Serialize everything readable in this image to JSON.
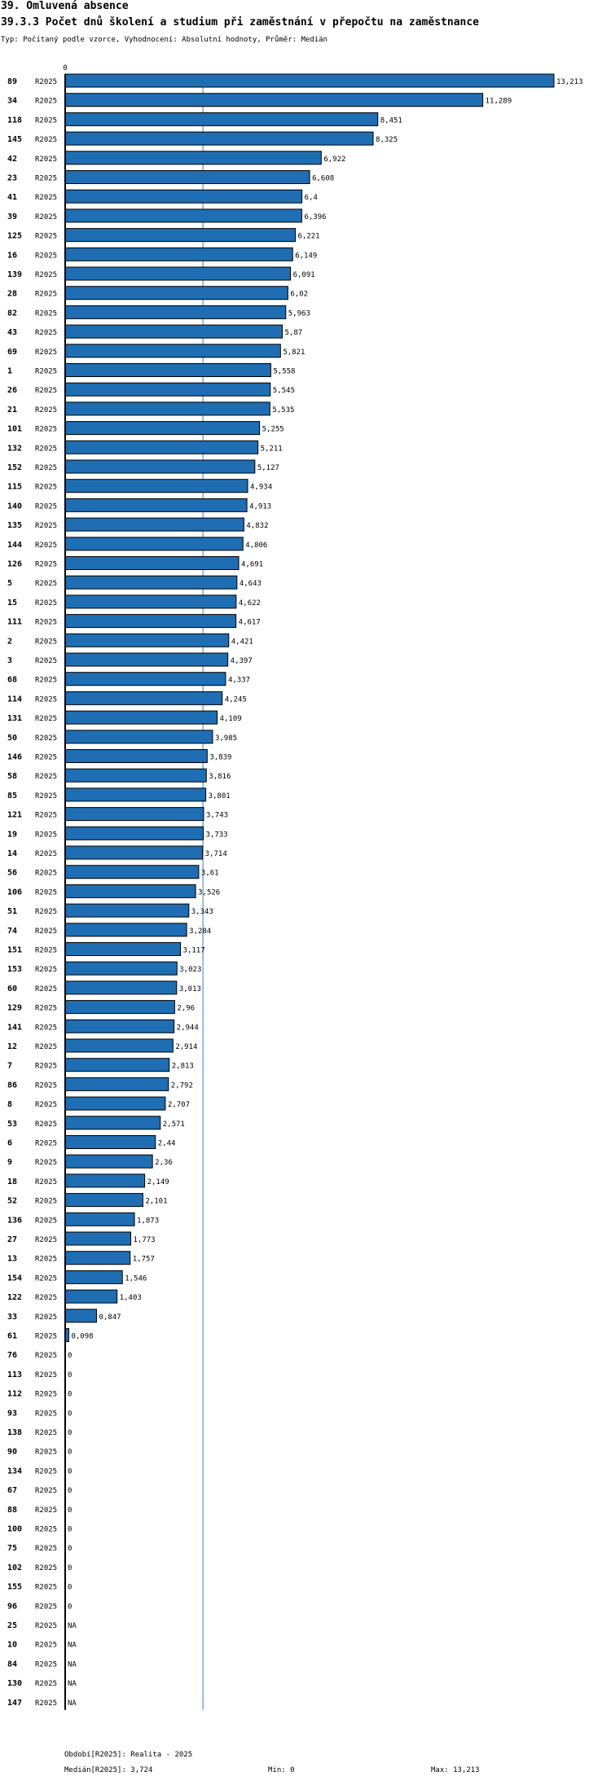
{
  "header": {
    "title": "39. Omluvená absence",
    "subtitle": "39.3.3 Počet dnů školení a studium při zaměstnání v přepočtu na zaměstnance",
    "type_line": "Typ: Počítaný podle vzorce, Vyhodnocení: Absolutní hodnoty, Průměr: Medián"
  },
  "footer": {
    "period": "Období[R2025]: Realita - 2025",
    "median": "Medián[R2025]: 3,724",
    "min": "Min: 0",
    "max": "Max: 13,213"
  },
  "colors": {
    "bar": "#1f6eb3",
    "bar_border": "#000000",
    "median_line": "#3a7fb8"
  },
  "chart_data": {
    "type": "bar",
    "orientation": "horizontal",
    "series_label": "R2025",
    "axis_zero_label": "0",
    "xlim": [
      0,
      13.213
    ],
    "median": 3.724,
    "rows": [
      {
        "id": "89",
        "value": 13.213,
        "label": "13,213"
      },
      {
        "id": "34",
        "value": 11.289,
        "label": "11,289"
      },
      {
        "id": "118",
        "value": 8.451,
        "label": "8,451"
      },
      {
        "id": "145",
        "value": 8.325,
        "label": "8,325"
      },
      {
        "id": "42",
        "value": 6.922,
        "label": "6,922"
      },
      {
        "id": "23",
        "value": 6.608,
        "label": "6,608"
      },
      {
        "id": "41",
        "value": 6.4,
        "label": "6,4"
      },
      {
        "id": "39",
        "value": 6.396,
        "label": "6,396"
      },
      {
        "id": "125",
        "value": 6.221,
        "label": "6,221"
      },
      {
        "id": "16",
        "value": 6.149,
        "label": "6,149"
      },
      {
        "id": "139",
        "value": 6.091,
        "label": "6,091"
      },
      {
        "id": "28",
        "value": 6.02,
        "label": "6,02"
      },
      {
        "id": "82",
        "value": 5.963,
        "label": "5,963"
      },
      {
        "id": "43",
        "value": 5.87,
        "label": "5,87"
      },
      {
        "id": "69",
        "value": 5.821,
        "label": "5,821"
      },
      {
        "id": "1",
        "value": 5.558,
        "label": "5,558"
      },
      {
        "id": "26",
        "value": 5.545,
        "label": "5,545"
      },
      {
        "id": "21",
        "value": 5.535,
        "label": "5,535"
      },
      {
        "id": "101",
        "value": 5.255,
        "label": "5,255"
      },
      {
        "id": "132",
        "value": 5.211,
        "label": "5,211"
      },
      {
        "id": "152",
        "value": 5.127,
        "label": "5,127"
      },
      {
        "id": "115",
        "value": 4.934,
        "label": "4,934"
      },
      {
        "id": "140",
        "value": 4.913,
        "label": "4,913"
      },
      {
        "id": "135",
        "value": 4.832,
        "label": "4,832"
      },
      {
        "id": "144",
        "value": 4.806,
        "label": "4,806"
      },
      {
        "id": "126",
        "value": 4.691,
        "label": "4,691"
      },
      {
        "id": "5",
        "value": 4.643,
        "label": "4,643"
      },
      {
        "id": "15",
        "value": 4.622,
        "label": "4,622"
      },
      {
        "id": "111",
        "value": 4.617,
        "label": "4,617"
      },
      {
        "id": "2",
        "value": 4.421,
        "label": "4,421"
      },
      {
        "id": "3",
        "value": 4.397,
        "label": "4,397"
      },
      {
        "id": "68",
        "value": 4.337,
        "label": "4,337"
      },
      {
        "id": "114",
        "value": 4.245,
        "label": "4,245"
      },
      {
        "id": "131",
        "value": 4.109,
        "label": "4,109"
      },
      {
        "id": "50",
        "value": 3.985,
        "label": "3,985"
      },
      {
        "id": "146",
        "value": 3.839,
        "label": "3,839"
      },
      {
        "id": "58",
        "value": 3.816,
        "label": "3,816"
      },
      {
        "id": "85",
        "value": 3.801,
        "label": "3,801"
      },
      {
        "id": "121",
        "value": 3.743,
        "label": "3,743"
      },
      {
        "id": "19",
        "value": 3.733,
        "label": "3,733"
      },
      {
        "id": "14",
        "value": 3.714,
        "label": "3,714"
      },
      {
        "id": "56",
        "value": 3.61,
        "label": "3,61"
      },
      {
        "id": "106",
        "value": 3.526,
        "label": "3,526"
      },
      {
        "id": "51",
        "value": 3.343,
        "label": "3,343"
      },
      {
        "id": "74",
        "value": 3.284,
        "label": "3,284"
      },
      {
        "id": "151",
        "value": 3.117,
        "label": "3,117"
      },
      {
        "id": "153",
        "value": 3.023,
        "label": "3,023"
      },
      {
        "id": "60",
        "value": 3.013,
        "label": "3,013"
      },
      {
        "id": "129",
        "value": 2.96,
        "label": "2,96"
      },
      {
        "id": "141",
        "value": 2.944,
        "label": "2,944"
      },
      {
        "id": "12",
        "value": 2.914,
        "label": "2,914"
      },
      {
        "id": "7",
        "value": 2.813,
        "label": "2,813"
      },
      {
        "id": "86",
        "value": 2.792,
        "label": "2,792"
      },
      {
        "id": "8",
        "value": 2.707,
        "label": "2,707"
      },
      {
        "id": "53",
        "value": 2.571,
        "label": "2,571"
      },
      {
        "id": "6",
        "value": 2.44,
        "label": "2,44"
      },
      {
        "id": "9",
        "value": 2.36,
        "label": "2,36"
      },
      {
        "id": "18",
        "value": 2.149,
        "label": "2,149"
      },
      {
        "id": "52",
        "value": 2.101,
        "label": "2,101"
      },
      {
        "id": "136",
        "value": 1.873,
        "label": "1,873"
      },
      {
        "id": "27",
        "value": 1.773,
        "label": "1,773"
      },
      {
        "id": "13",
        "value": 1.757,
        "label": "1,757"
      },
      {
        "id": "154",
        "value": 1.546,
        "label": "1,546"
      },
      {
        "id": "122",
        "value": 1.403,
        "label": "1,403"
      },
      {
        "id": "33",
        "value": 0.847,
        "label": "0,847"
      },
      {
        "id": "61",
        "value": 0.098,
        "label": "0,098"
      },
      {
        "id": "76",
        "value": 0,
        "label": "0"
      },
      {
        "id": "113",
        "value": 0,
        "label": "0"
      },
      {
        "id": "112",
        "value": 0,
        "label": "0"
      },
      {
        "id": "93",
        "value": 0,
        "label": "0"
      },
      {
        "id": "138",
        "value": 0,
        "label": "0"
      },
      {
        "id": "90",
        "value": 0,
        "label": "0"
      },
      {
        "id": "134",
        "value": 0,
        "label": "0"
      },
      {
        "id": "67",
        "value": 0,
        "label": "0"
      },
      {
        "id": "88",
        "value": 0,
        "label": "0"
      },
      {
        "id": "100",
        "value": 0,
        "label": "0"
      },
      {
        "id": "75",
        "value": 0,
        "label": "0"
      },
      {
        "id": "102",
        "value": 0,
        "label": "0"
      },
      {
        "id": "155",
        "value": 0,
        "label": "0"
      },
      {
        "id": "96",
        "value": 0,
        "label": "0"
      },
      {
        "id": "25",
        "value": null,
        "label": "NA"
      },
      {
        "id": "10",
        "value": null,
        "label": "NA"
      },
      {
        "id": "84",
        "value": null,
        "label": "NA"
      },
      {
        "id": "130",
        "value": null,
        "label": "NA"
      },
      {
        "id": "147",
        "value": null,
        "label": "NA"
      }
    ]
  }
}
